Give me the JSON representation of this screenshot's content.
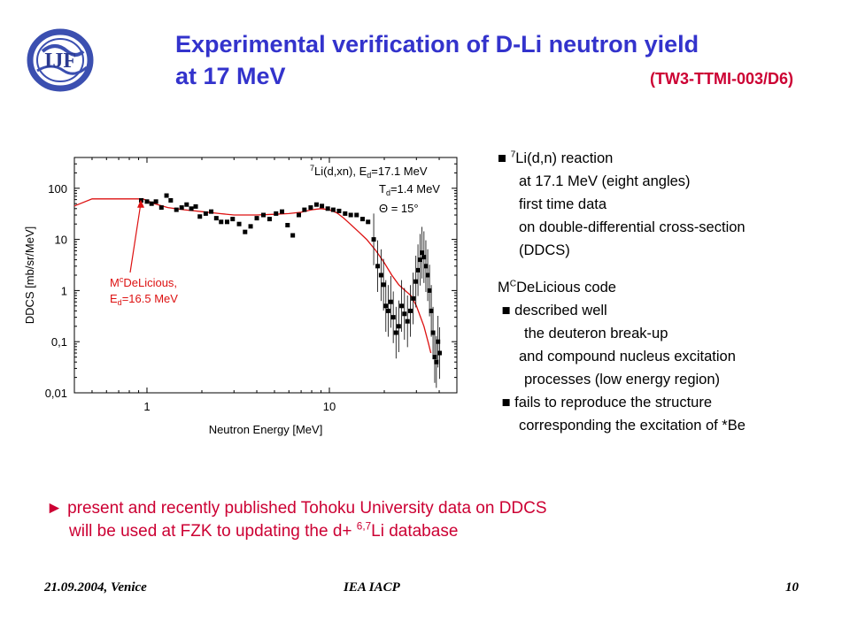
{
  "slide": {
    "title_line1": "Experimental verification of D-Li neutron yield",
    "title_line2": "at 17 MeV",
    "title_code": "(TW3-TTMI-003/D6)",
    "logo_label": "IJF"
  },
  "bullets": {
    "marker": "■",
    "b1_sup": "7",
    "b1_l1": "Li(d,n) reaction",
    "b1_l2": "at 17.1 MeV (eight angles)",
    "b1_l3": "first time data",
    "b1_l4": "on double-differential cross-section",
    "b1_l5": "(DDCS)",
    "code_m": "M",
    "code_sup": "C",
    "code_rest": "DeLicious code",
    "b2_l1": "described well",
    "b2_l2": "the deuteron break-up",
    "b2_l3": "and compound nucleus excitation",
    "b2_l4": "processes (low energy region)",
    "b3_l1": "fails to reproduce the structure",
    "b3_l2": "corresponding the excitation of *Be"
  },
  "bottom": {
    "arrow": "►",
    "line1": "present and recently published Tohoku University data on DDCS",
    "line2_a": "will be used at FZK to updating the d+ ",
    "line2_sup": "6,7",
    "line2_b": "Li database"
  },
  "footer": {
    "left": "21.09.2004, Venice",
    "center": "IEA IACP",
    "page": "10"
  },
  "chart_data": {
    "type": "scatter",
    "xlabel": "Neutron Energy [MeV]",
    "ylabel": "DDCS [mb/sr/MeV]",
    "xscale": "log",
    "yscale": "log",
    "xlim": [
      0.4,
      50
    ],
    "ylim": [
      0.01,
      400
    ],
    "xticks": [
      {
        "v": 1,
        "label": "1"
      },
      {
        "v": 10,
        "label": "10"
      }
    ],
    "yticks": [
      {
        "v": 0.01,
        "label": "0,01"
      },
      {
        "v": 0.1,
        "label": "0,1"
      },
      {
        "v": 1,
        "label": "1"
      },
      {
        "v": 10,
        "label": "10"
      },
      {
        "v": 100,
        "label": "100"
      }
    ],
    "legend": {
      "reaction_sup": "7",
      "reaction": "Li(d,xn), E",
      "reaction_sub": "d",
      "reaction_val": "=17.1 MeV",
      "temp": "T",
      "temp_sub": "d",
      "temp_val": "=1.4 MeV",
      "angle": "Θ = 15°"
    },
    "annotation": {
      "m": "M",
      "m_sup": "c",
      "name": "DeLicious,",
      "e": "E",
      "e_sub": "d",
      "e_val": "=16.5 MeV",
      "color": "#dd1111"
    },
    "series": [
      {
        "kind": "points",
        "color": "#000000",
        "points": [
          [
            0.93,
            58
          ],
          [
            1.0,
            55
          ],
          [
            1.06,
            50
          ],
          [
            1.12,
            55
          ],
          [
            1.2,
            42
          ],
          [
            1.28,
            72
          ],
          [
            1.35,
            58
          ],
          [
            1.45,
            38
          ],
          [
            1.55,
            42
          ],
          [
            1.65,
            48
          ],
          [
            1.75,
            40
          ],
          [
            1.85,
            44
          ],
          [
            1.95,
            28
          ],
          [
            2.1,
            32
          ],
          [
            2.25,
            35
          ],
          [
            2.4,
            26
          ],
          [
            2.55,
            22
          ],
          [
            2.75,
            22
          ],
          [
            2.95,
            25
          ],
          [
            3.2,
            20
          ],
          [
            3.45,
            14
          ],
          [
            3.7,
            18
          ],
          [
            4.0,
            26
          ],
          [
            4.35,
            30
          ],
          [
            4.7,
            25
          ],
          [
            5.1,
            32
          ],
          [
            5.5,
            35
          ],
          [
            5.9,
            19
          ],
          [
            6.3,
            12
          ],
          [
            6.8,
            30
          ],
          [
            7.3,
            38
          ],
          [
            7.9,
            42
          ],
          [
            8.5,
            48
          ],
          [
            9.1,
            45
          ],
          [
            9.8,
            40
          ],
          [
            10.5,
            38
          ],
          [
            11.3,
            36
          ],
          [
            12.2,
            32
          ],
          [
            13.1,
            30
          ],
          [
            14.1,
            30
          ],
          [
            15.2,
            25
          ],
          [
            16.3,
            22
          ],
          [
            17.5,
            10
          ],
          [
            18.4,
            3.0
          ],
          [
            19.2,
            2.0
          ],
          [
            19.8,
            1.3
          ],
          [
            20.4,
            0.5
          ],
          [
            21.0,
            0.4
          ],
          [
            21.7,
            0.6
          ],
          [
            22.4,
            0.3
          ],
          [
            23.2,
            0.15
          ],
          [
            24.0,
            0.2
          ],
          [
            24.9,
            0.5
          ],
          [
            25.8,
            0.35
          ],
          [
            26.8,
            0.25
          ],
          [
            27.8,
            0.4
          ],
          [
            28.8,
            0.7
          ],
          [
            29.8,
            1.5
          ],
          [
            30.6,
            2.5
          ],
          [
            31.4,
            4.0
          ],
          [
            32.2,
            5.5
          ],
          [
            33.0,
            4.5
          ],
          [
            33.8,
            3.0
          ],
          [
            34.6,
            2.0
          ],
          [
            35.4,
            1.0
          ],
          [
            36.2,
            0.4
          ],
          [
            37.0,
            0.15
          ],
          [
            37.8,
            0.05
          ],
          [
            38.6,
            0.04
          ],
          [
            39.4,
            0.1
          ],
          [
            40.2,
            0.06
          ]
        ]
      },
      {
        "kind": "line",
        "color": "#dd1111",
        "points": [
          [
            0.4,
            45
          ],
          [
            0.5,
            62
          ],
          [
            0.6,
            62
          ],
          [
            0.8,
            62
          ],
          [
            0.95,
            62
          ],
          [
            1.1,
            50
          ],
          [
            1.3,
            42
          ],
          [
            1.6,
            38
          ],
          [
            2.0,
            35
          ],
          [
            2.5,
            32
          ],
          [
            3.0,
            30
          ],
          [
            4.0,
            30
          ],
          [
            5.0,
            31
          ],
          [
            6.0,
            32
          ],
          [
            7.0,
            34
          ],
          [
            8.0,
            38
          ],
          [
            9.0,
            40
          ],
          [
            10.0,
            38
          ],
          [
            11.0,
            33
          ],
          [
            12.0,
            26
          ],
          [
            13.0,
            20
          ],
          [
            14.5,
            14
          ],
          [
            16.0,
            10
          ],
          [
            18.0,
            6
          ],
          [
            20.0,
            3.5
          ],
          [
            22.0,
            2.0
          ],
          [
            24.0,
            1.3
          ],
          [
            26.0,
            1.0
          ],
          [
            28.0,
            0.8
          ],
          [
            30.0,
            0.5
          ],
          [
            33.0,
            0.2
          ],
          [
            35.0,
            0.09
          ],
          [
            36.0,
            0.06
          ]
        ]
      }
    ]
  }
}
